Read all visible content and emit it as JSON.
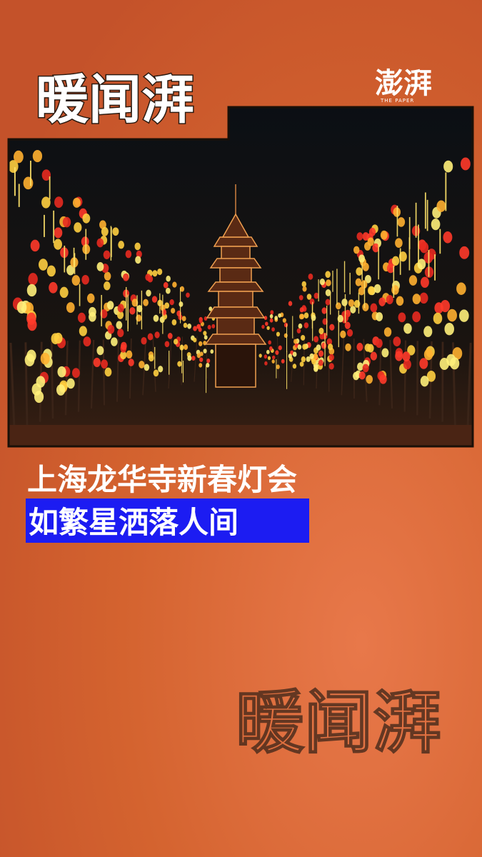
{
  "header": {
    "logo": "暖闻湃",
    "brand": "澎湃",
    "brand_sub": "THE PAPER"
  },
  "caption": {
    "line1": "上海龙华寺新春灯会",
    "line2": "如繁星洒落人间"
  },
  "watermark": "暖闻湃"
}
